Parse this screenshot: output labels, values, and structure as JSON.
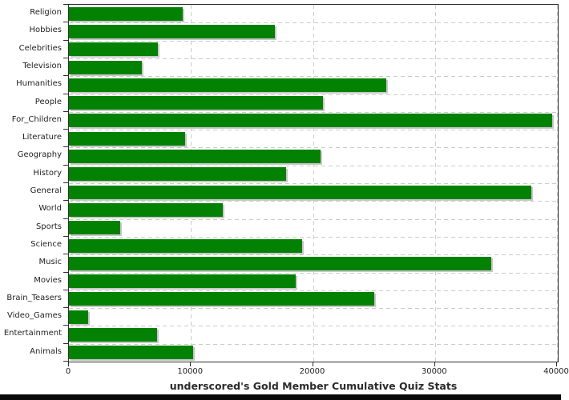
{
  "chart_data": {
    "type": "bar",
    "orientation": "horizontal",
    "title": "underscored's Gold Member Cumulative Quiz Stats",
    "categories": [
      "Religion",
      "Hobbies",
      "Celebrities",
      "Television",
      "Humanities",
      "People",
      "For_Children",
      "Literature",
      "Geography",
      "History",
      "General",
      "World",
      "Sports",
      "Science",
      "Music",
      "Movies",
      "Brain_Teasers",
      "Video_Games",
      "Entertainment",
      "Animals"
    ],
    "values": [
      9300,
      16900,
      7300,
      6000,
      26000,
      20800,
      39600,
      9500,
      20600,
      17800,
      37900,
      12600,
      4200,
      19100,
      34600,
      18600,
      25000,
      1600,
      7250,
      10200
    ],
    "xlim": [
      0,
      40065
    ],
    "x_ticks": [
      0,
      10000,
      20000,
      30000,
      40000
    ],
    "x_tick_labels": [
      "0",
      "10000",
      "20000",
      "30000",
      "40000"
    ],
    "grid": "dashed",
    "legend": "none",
    "colors": {
      "bar": "#038103",
      "bar_shadow": "#c8c8c8",
      "grid_line": "#cccccc",
      "axis": "#2e2e2e",
      "text": "#1f1f1f"
    }
  }
}
